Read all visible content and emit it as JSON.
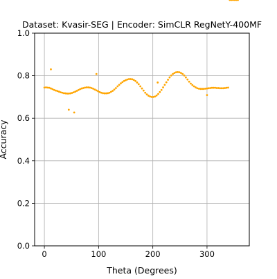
{
  "chart_data": {
    "type": "scatter",
    "title": "Dataset: Kvasir-SEG | Encoder: SimCLR RegNetY-400MF",
    "xlabel": "Theta (Degrees)",
    "ylabel": "Accuracy",
    "xlim": [
      -18,
      378
    ],
    "ylim": [
      0.0,
      1.0
    ],
    "xticks": [
      0,
      100,
      200,
      300
    ],
    "yticks": [
      0.0,
      0.2,
      0.4,
      0.6,
      0.8,
      1.0
    ],
    "xtick_labels": [
      "0",
      "100",
      "200",
      "300"
    ],
    "ytick_labels": [
      "0.0",
      "0.2",
      "0.4",
      "0.6",
      "0.8",
      "1.0"
    ],
    "grid": true,
    "point_color": "#ffa500",
    "outliers": [
      {
        "x": 12,
        "y": 0.83
      },
      {
        "x": 45,
        "y": 0.64
      },
      {
        "x": 55,
        "y": 0.627
      },
      {
        "x": 96,
        "y": 0.808
      },
      {
        "x": 209,
        "y": 0.768
      },
      {
        "x": 300,
        "y": 0.709
      }
    ],
    "series_x": [
      0,
      3,
      6,
      9,
      12,
      15,
      18,
      21,
      24,
      27,
      30,
      33,
      36,
      39,
      42,
      45,
      48,
      51,
      54,
      57,
      60,
      63,
      66,
      69,
      72,
      75,
      78,
      81,
      84,
      87,
      90,
      93,
      96,
      99,
      102,
      105,
      108,
      111,
      114,
      117,
      120,
      123,
      126,
      129,
      132,
      135,
      138,
      141,
      144,
      147,
      150,
      153,
      156,
      159,
      162,
      165,
      168,
      171,
      174,
      177,
      180,
      183,
      186,
      189,
      192,
      195,
      198,
      201,
      204,
      207,
      210,
      213,
      216,
      219,
      222,
      225,
      228,
      231,
      234,
      237,
      240,
      243,
      246,
      249,
      252,
      255,
      258,
      261,
      264,
      267,
      270,
      273,
      276,
      279,
      282,
      285,
      288,
      291,
      294,
      297,
      300,
      303,
      306,
      309,
      312,
      315,
      318,
      321,
      324,
      327,
      330,
      333,
      336,
      339,
      342,
      345,
      348,
      351,
      354,
      357
    ],
    "series_y": [
      0.744,
      0.745,
      0.744,
      0.743,
      0.74,
      0.737,
      0.733,
      0.73,
      0.728,
      0.725,
      0.722,
      0.72,
      0.718,
      0.717,
      0.716,
      0.716,
      0.717,
      0.719,
      0.722,
      0.725,
      0.729,
      0.733,
      0.737,
      0.74,
      0.742,
      0.744,
      0.745,
      0.745,
      0.744,
      0.742,
      0.739,
      0.735,
      0.731,
      0.727,
      0.723,
      0.72,
      0.718,
      0.717,
      0.717,
      0.718,
      0.72,
      0.724,
      0.729,
      0.735,
      0.742,
      0.75,
      0.757,
      0.764,
      0.77,
      0.775,
      0.779,
      0.782,
      0.784,
      0.784,
      0.783,
      0.78,
      0.775,
      0.768,
      0.76,
      0.75,
      0.74,
      0.73,
      0.72,
      0.712,
      0.706,
      0.702,
      0.7,
      0.7,
      0.702,
      0.707,
      0.714,
      0.723,
      0.733,
      0.745,
      0.757,
      0.769,
      0.781,
      0.792,
      0.801,
      0.808,
      0.813,
      0.816,
      0.817,
      0.816,
      0.813,
      0.808,
      0.801,
      0.792,
      0.782,
      0.772,
      0.763,
      0.756,
      0.75,
      0.745,
      0.741,
      0.739,
      0.738,
      0.738,
      0.738,
      0.739,
      0.74,
      0.741,
      0.742,
      0.743,
      0.743,
      0.743,
      0.742,
      0.742,
      0.741,
      0.741,
      0.741,
      0.742,
      0.743,
      0.744
    ]
  }
}
